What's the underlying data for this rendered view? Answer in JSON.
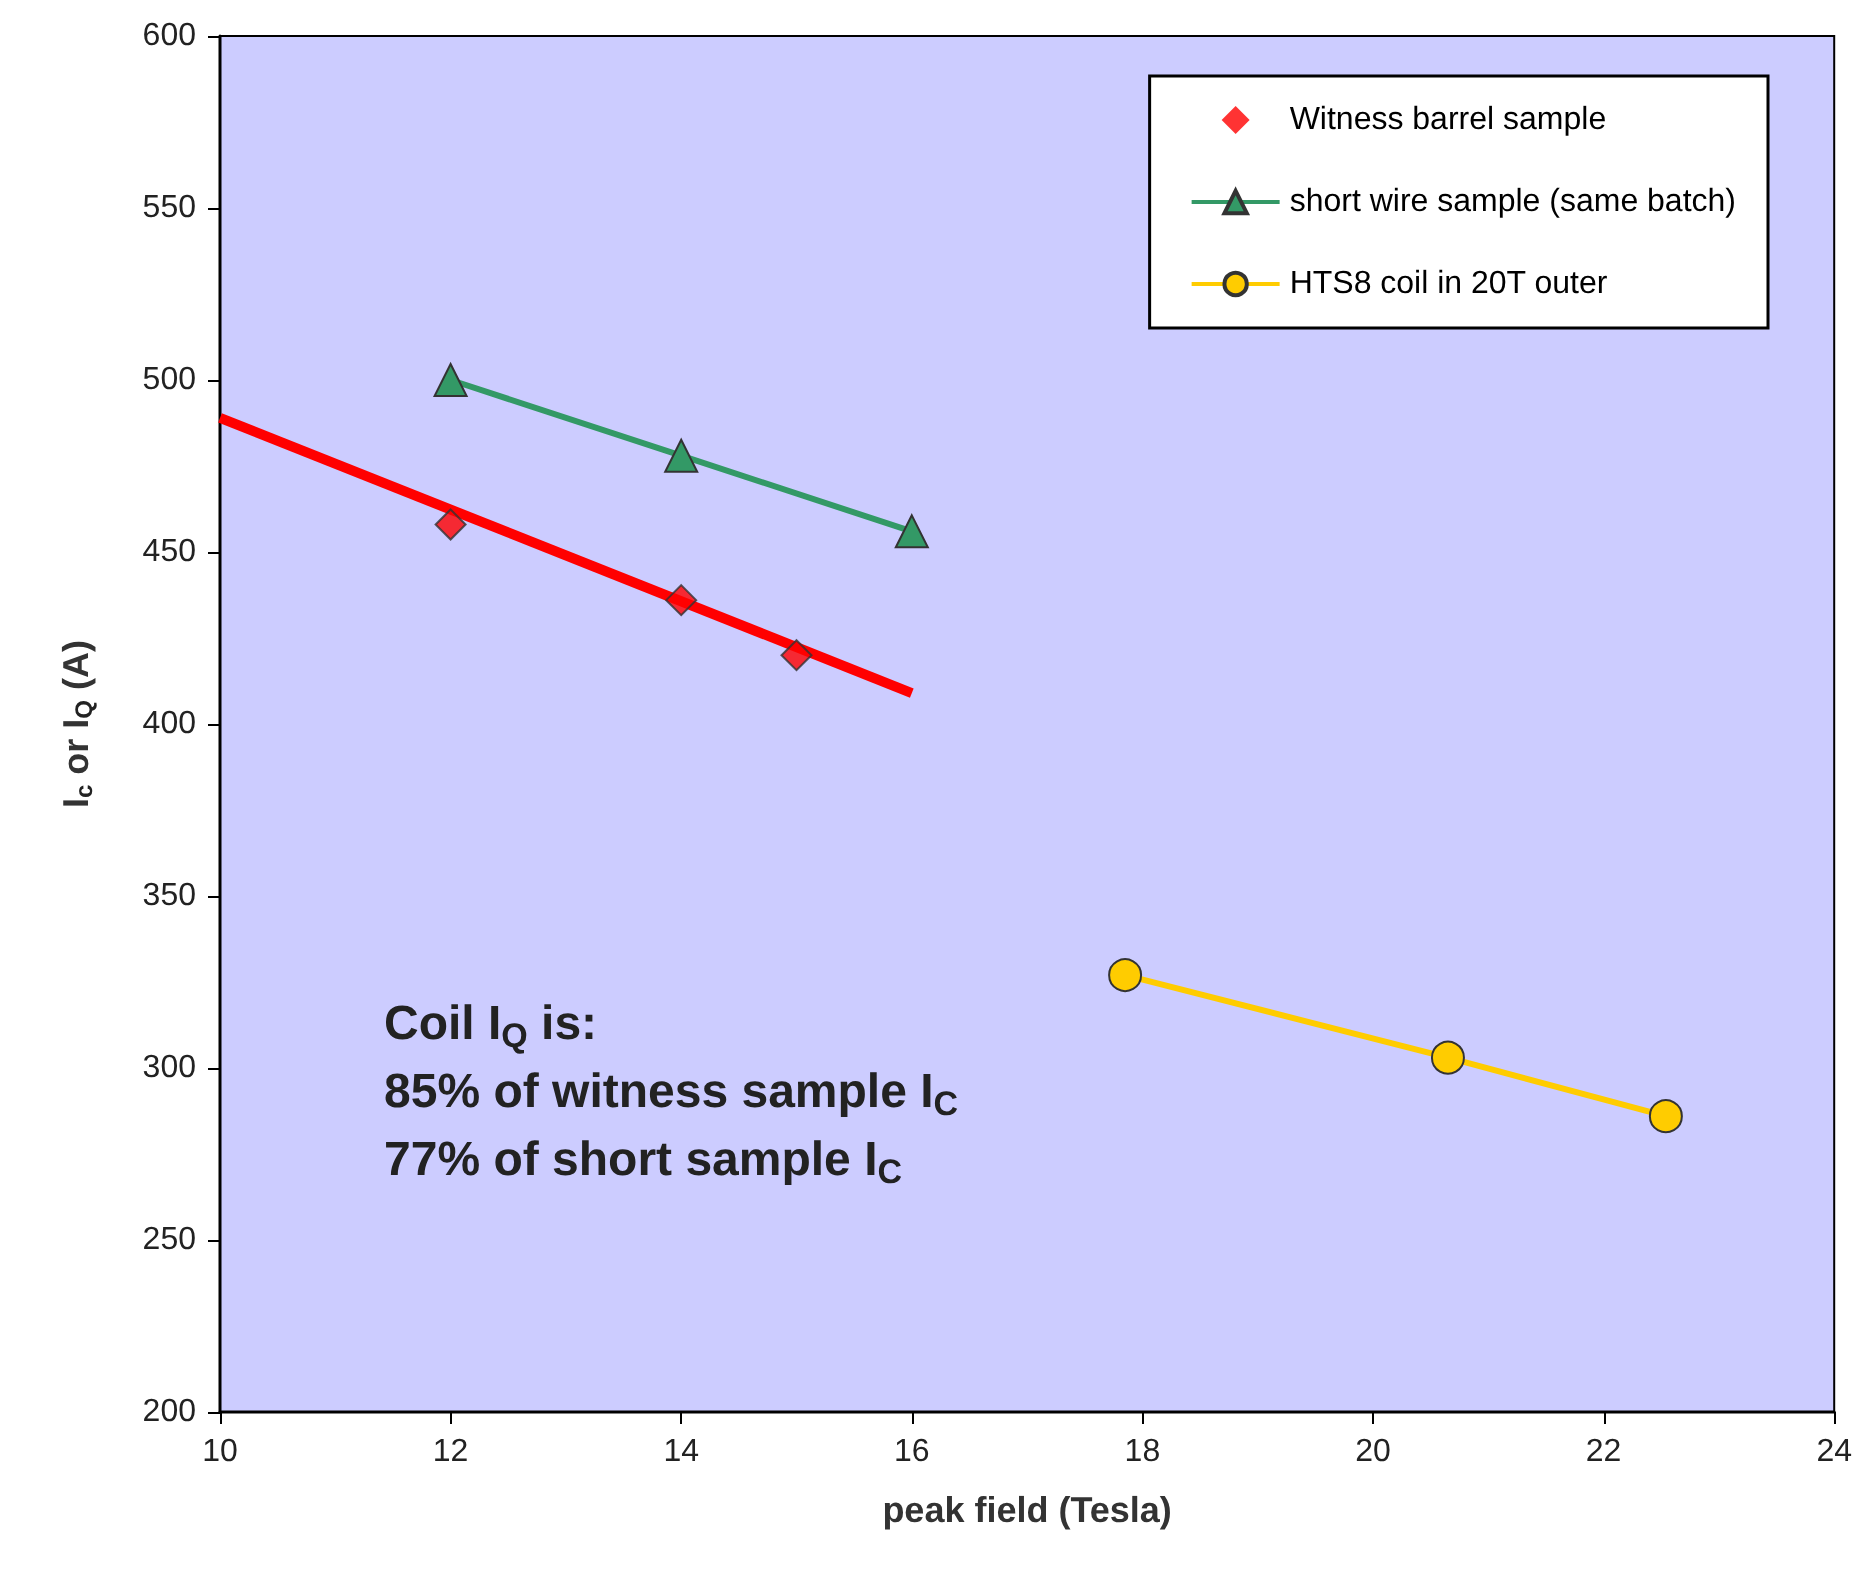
{
  "chart_data": {
    "type": "line",
    "xlabel": "peak field (Tesla)",
    "ylabel": "I$_{c}$ or I$_{Q}$ (A)",
    "xlim": [
      10,
      24
    ],
    "xticks": [
      10,
      12,
      14,
      16,
      18,
      20,
      22,
      24
    ],
    "ylim": [
      200,
      600
    ],
    "yticks": [
      200,
      250,
      300,
      350,
      400,
      450,
      500,
      550,
      600
    ],
    "grid": false,
    "legend": "top right",
    "series": [
      {
        "name": "Witness barrel sample",
        "type": "scatter",
        "marker": "diamond",
        "color": "#ff0000",
        "x": [
          12,
          14,
          15
        ],
        "values": [
          458,
          436,
          420
        ]
      },
      {
        "name": "short wire sample (same batch)",
        "marker": "triangle",
        "color": "#339966",
        "x": [
          12,
          14,
          16
        ],
        "values": [
          500,
          478,
          456
        ]
      },
      {
        "name": "HTS8 coil in 20T outer",
        "marker": "circle",
        "color": "#ffcc00",
        "x": [
          17.85,
          20.65,
          22.54
        ],
        "values": [
          327,
          303,
          286
        ]
      },
      {
        "marker": "none",
        "color": "#ff0000",
        "x": [
          10,
          16
        ],
        "values": [
          489,
          409
        ]
      }
    ],
    "annotations": [
      "Coil I$_{Q}$ is:",
      "85% of witness sample I$_{C}$",
      "77% of short sample I$_{C}$"
    ]
  }
}
